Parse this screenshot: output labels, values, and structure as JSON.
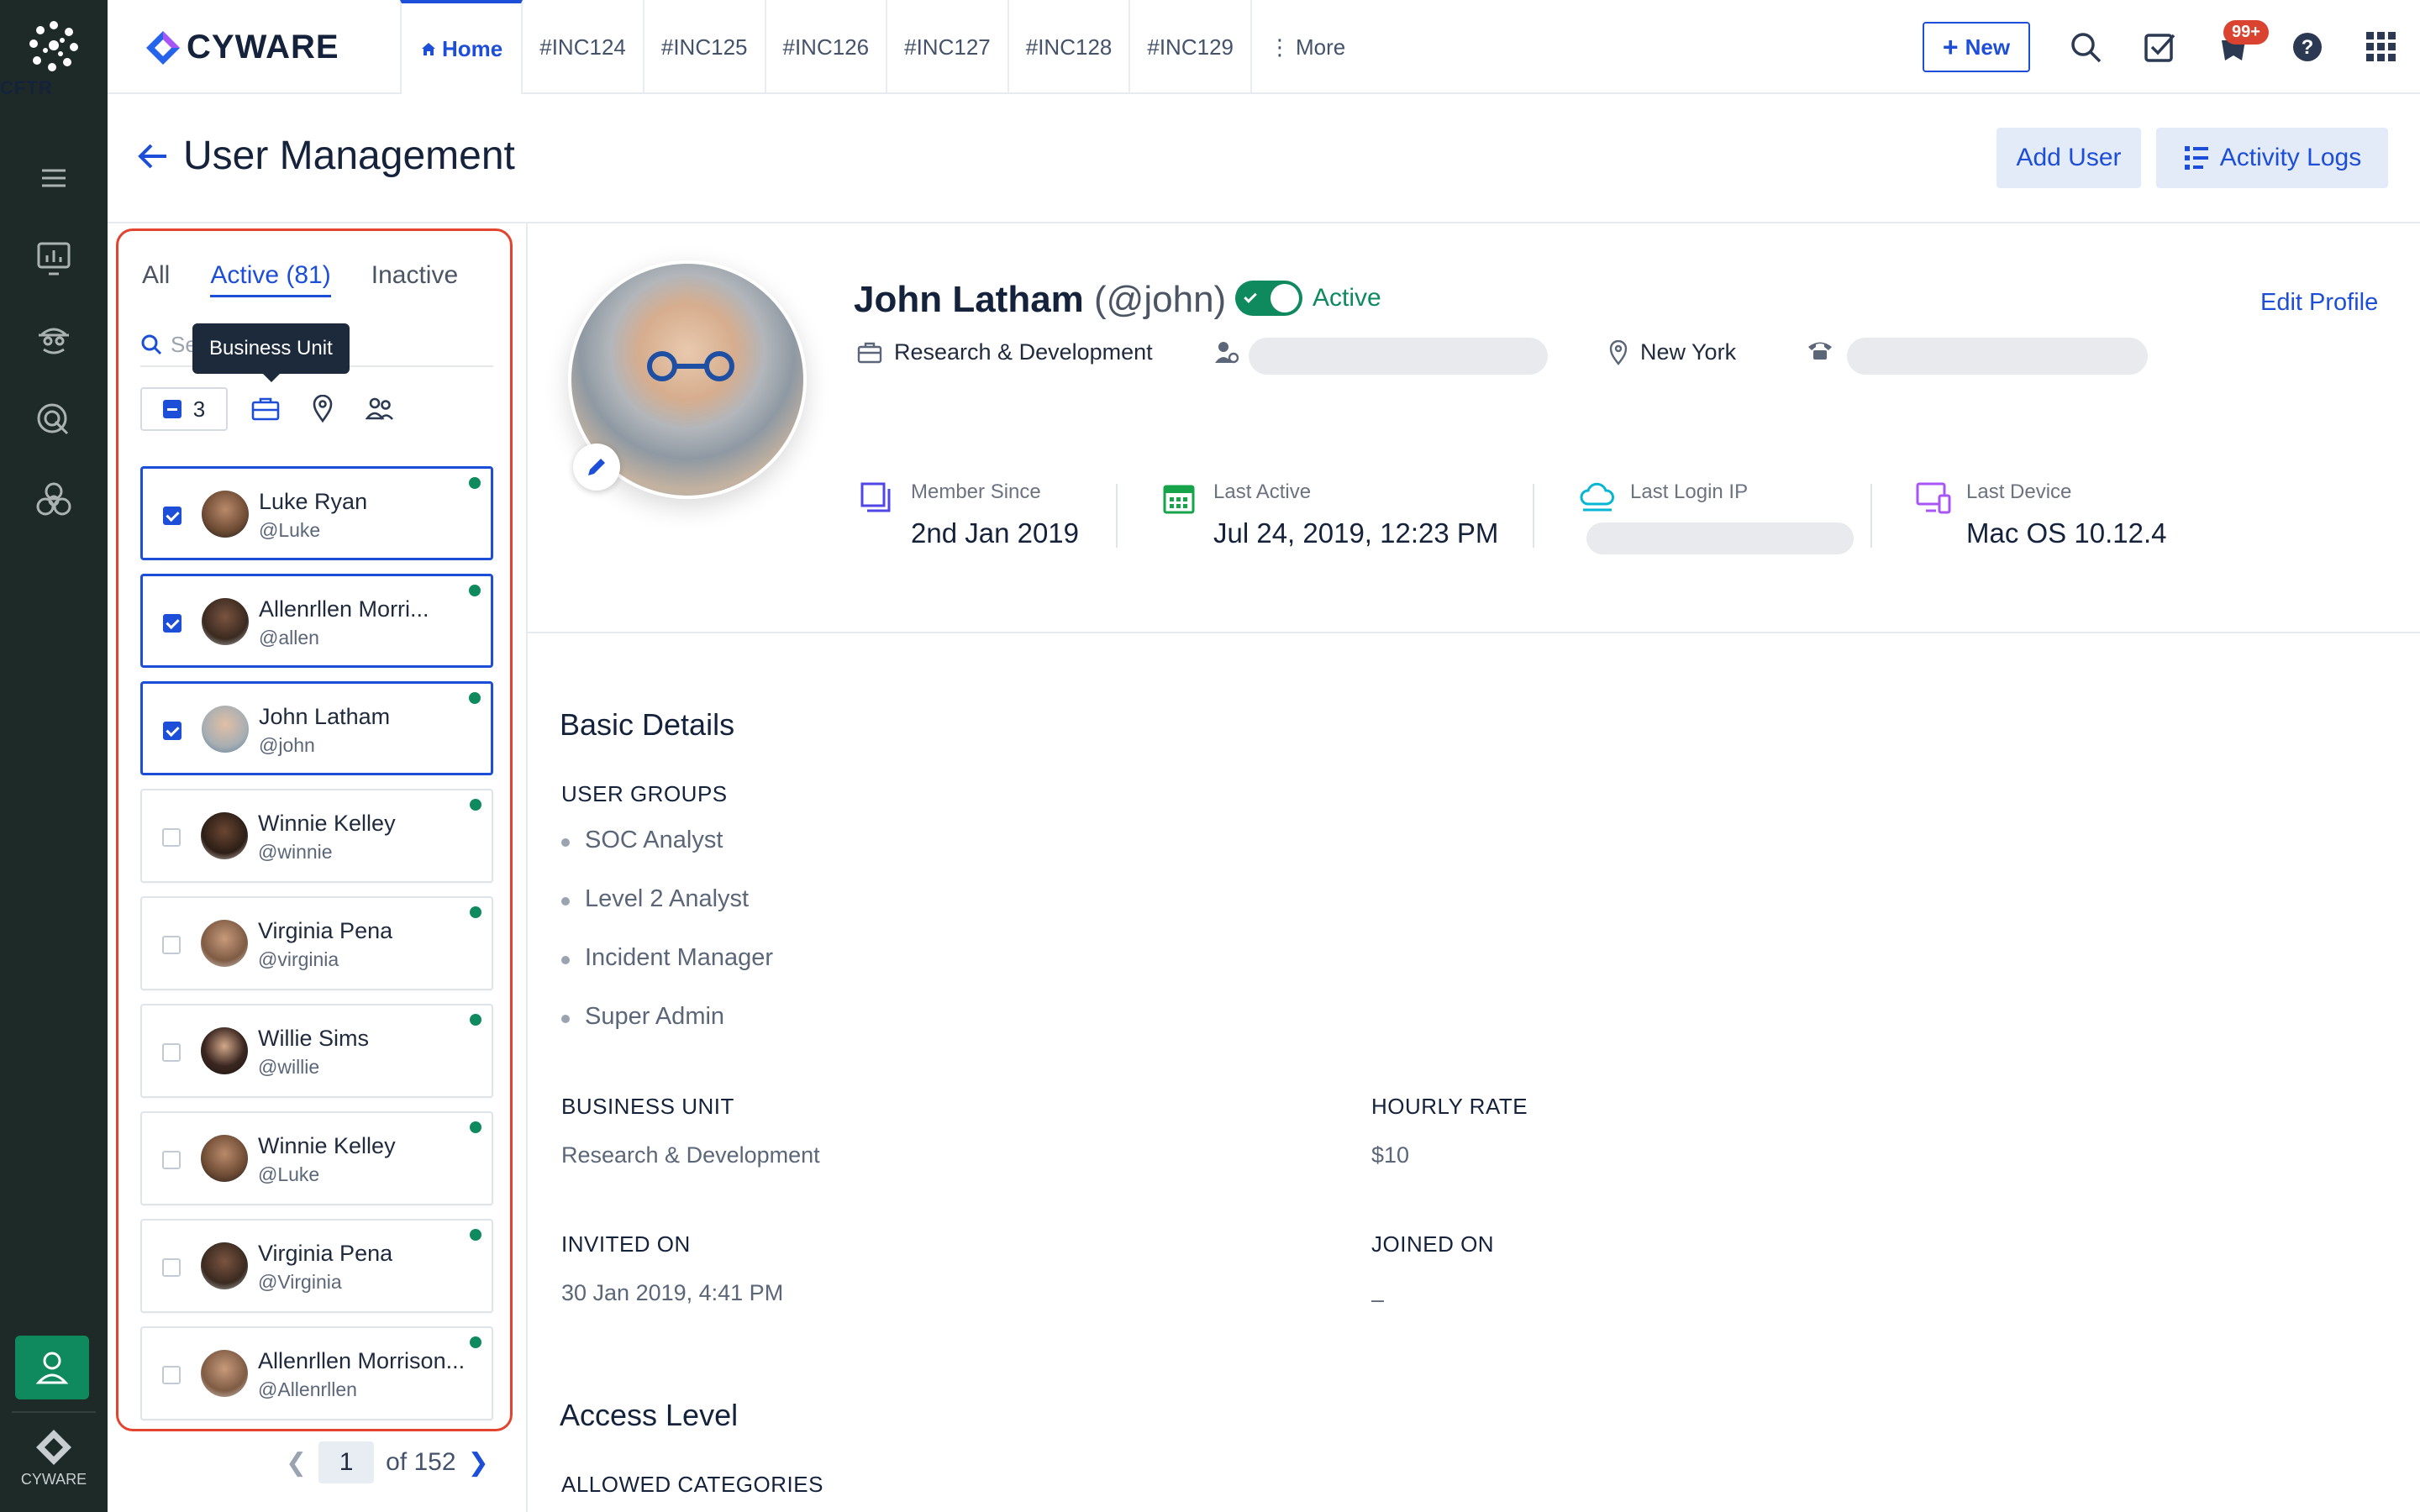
{
  "rail": {
    "logo_label": "CFTR",
    "footer_label": "CYWARE"
  },
  "topbar": {
    "brand": "CYWARE",
    "tabs": [
      "Home",
      "#INC124",
      "#INC125",
      "#INC126",
      "#INC127",
      "#INC128",
      "#INC129",
      "More"
    ],
    "new_label": "New",
    "notif_badge": "99+"
  },
  "page": {
    "title": "User Management",
    "add_user": "Add User",
    "activity_logs": "Activity Logs"
  },
  "list": {
    "filters": {
      "all": "All",
      "active": "Active (81)",
      "inactive": "Inactive"
    },
    "search_placeholder": "Se",
    "tooltip": "Business Unit",
    "selected_count": "3",
    "users": [
      {
        "name": "Luke Ryan",
        "handle": "@Luke",
        "selected": true
      },
      {
        "name": "Allenrllen Morri...",
        "handle": "@allen",
        "selected": true
      },
      {
        "name": "John Latham",
        "handle": "@john",
        "selected": true
      },
      {
        "name": "Winnie Kelley",
        "handle": "@winnie",
        "selected": false
      },
      {
        "name": "Virginia Pena",
        "handle": "@virginia",
        "selected": false
      },
      {
        "name": "Willie Sims",
        "handle": "@willie",
        "selected": false
      },
      {
        "name": "Winnie Kelley",
        "handle": "@Luke",
        "selected": false
      },
      {
        "name": "Virginia Pena",
        "handle": "@Virginia",
        "selected": false
      },
      {
        "name": "Allenrllen Morrison...",
        "handle": "@Allenrllen",
        "selected": false
      }
    ],
    "pager": {
      "page": "1",
      "total": "of 152"
    }
  },
  "profile": {
    "name": "John Latham",
    "handle": "(@john)",
    "status": "Active",
    "edit": "Edit Profile",
    "department": "Research & Development",
    "location": "New York",
    "stats": {
      "member_since_label": "Member Since",
      "member_since": "2nd Jan 2019",
      "last_active_label": "Last Active",
      "last_active": "Jul 24, 2019, 12:23 PM",
      "last_login_label": "Last Login IP",
      "last_device_label": "Last Device",
      "last_device": "Mac OS 10.12.4"
    }
  },
  "details": {
    "title": "Basic Details",
    "groups_label": "USER GROUPS",
    "groups": [
      "SOC Analyst",
      "Level 2 Analyst",
      "Incident Manager",
      "Super Admin"
    ],
    "bu_label": "BUSINESS UNIT",
    "bu": "Research & Development",
    "rate_label": "HOURLY RATE",
    "rate": "$10",
    "invited_label": "INVITED ON",
    "invited": "30 Jan 2019, 4:41 PM",
    "joined_label": "JOINED ON",
    "joined": "–",
    "access_title": "Access Level",
    "categories_label": "ALLOWED CATEGORIES"
  },
  "colors": {
    "accent": "#1d4ed8",
    "success": "#0f8a5f",
    "rail": "#1e2a28",
    "highlight": "#e2442f"
  }
}
